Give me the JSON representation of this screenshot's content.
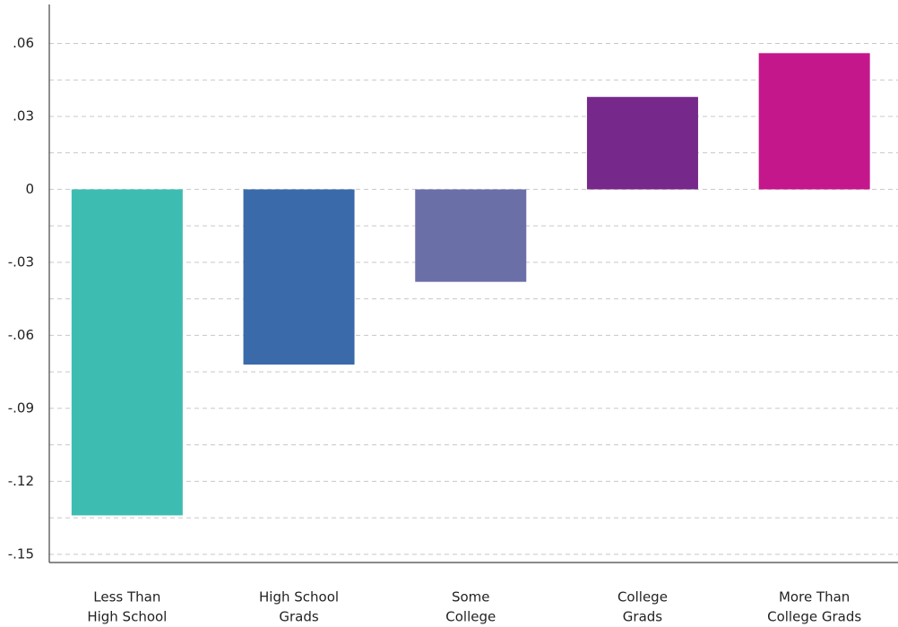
{
  "chart_data": {
    "type": "bar",
    "categories": [
      [
        "Less Than",
        "High School"
      ],
      [
        "High School",
        "Grads"
      ],
      [
        "Some",
        "College"
      ],
      [
        "College",
        "Grads"
      ],
      [
        "More Than",
        "College Grads"
      ]
    ],
    "values": [
      -0.134,
      -0.072,
      -0.038,
      0.038,
      0.056
    ],
    "colors": [
      "#3dbdb1",
      "#3a6aaa",
      "#6b6fa8",
      "#77298b",
      "#c5178c"
    ],
    "ylim": [
      -0.153,
      0.076
    ],
    "yticks": [
      {
        "value": 0.06,
        "label": ".06"
      },
      {
        "value": 0.03,
        "label": ".03"
      },
      0,
      {
        "value": -0.03,
        "label": "-.03"
      },
      {
        "value": -0.06,
        "label": "-.06"
      },
      {
        "value": -0.09,
        "label": "-.09"
      },
      {
        "value": -0.12,
        "label": "-.12"
      },
      {
        "value": -0.15,
        "label": "-.15"
      }
    ],
    "minor_grid": [
      0.045,
      0.015,
      -0.015,
      -0.045,
      -0.075,
      -0.105,
      -0.135
    ],
    "grid": true
  }
}
